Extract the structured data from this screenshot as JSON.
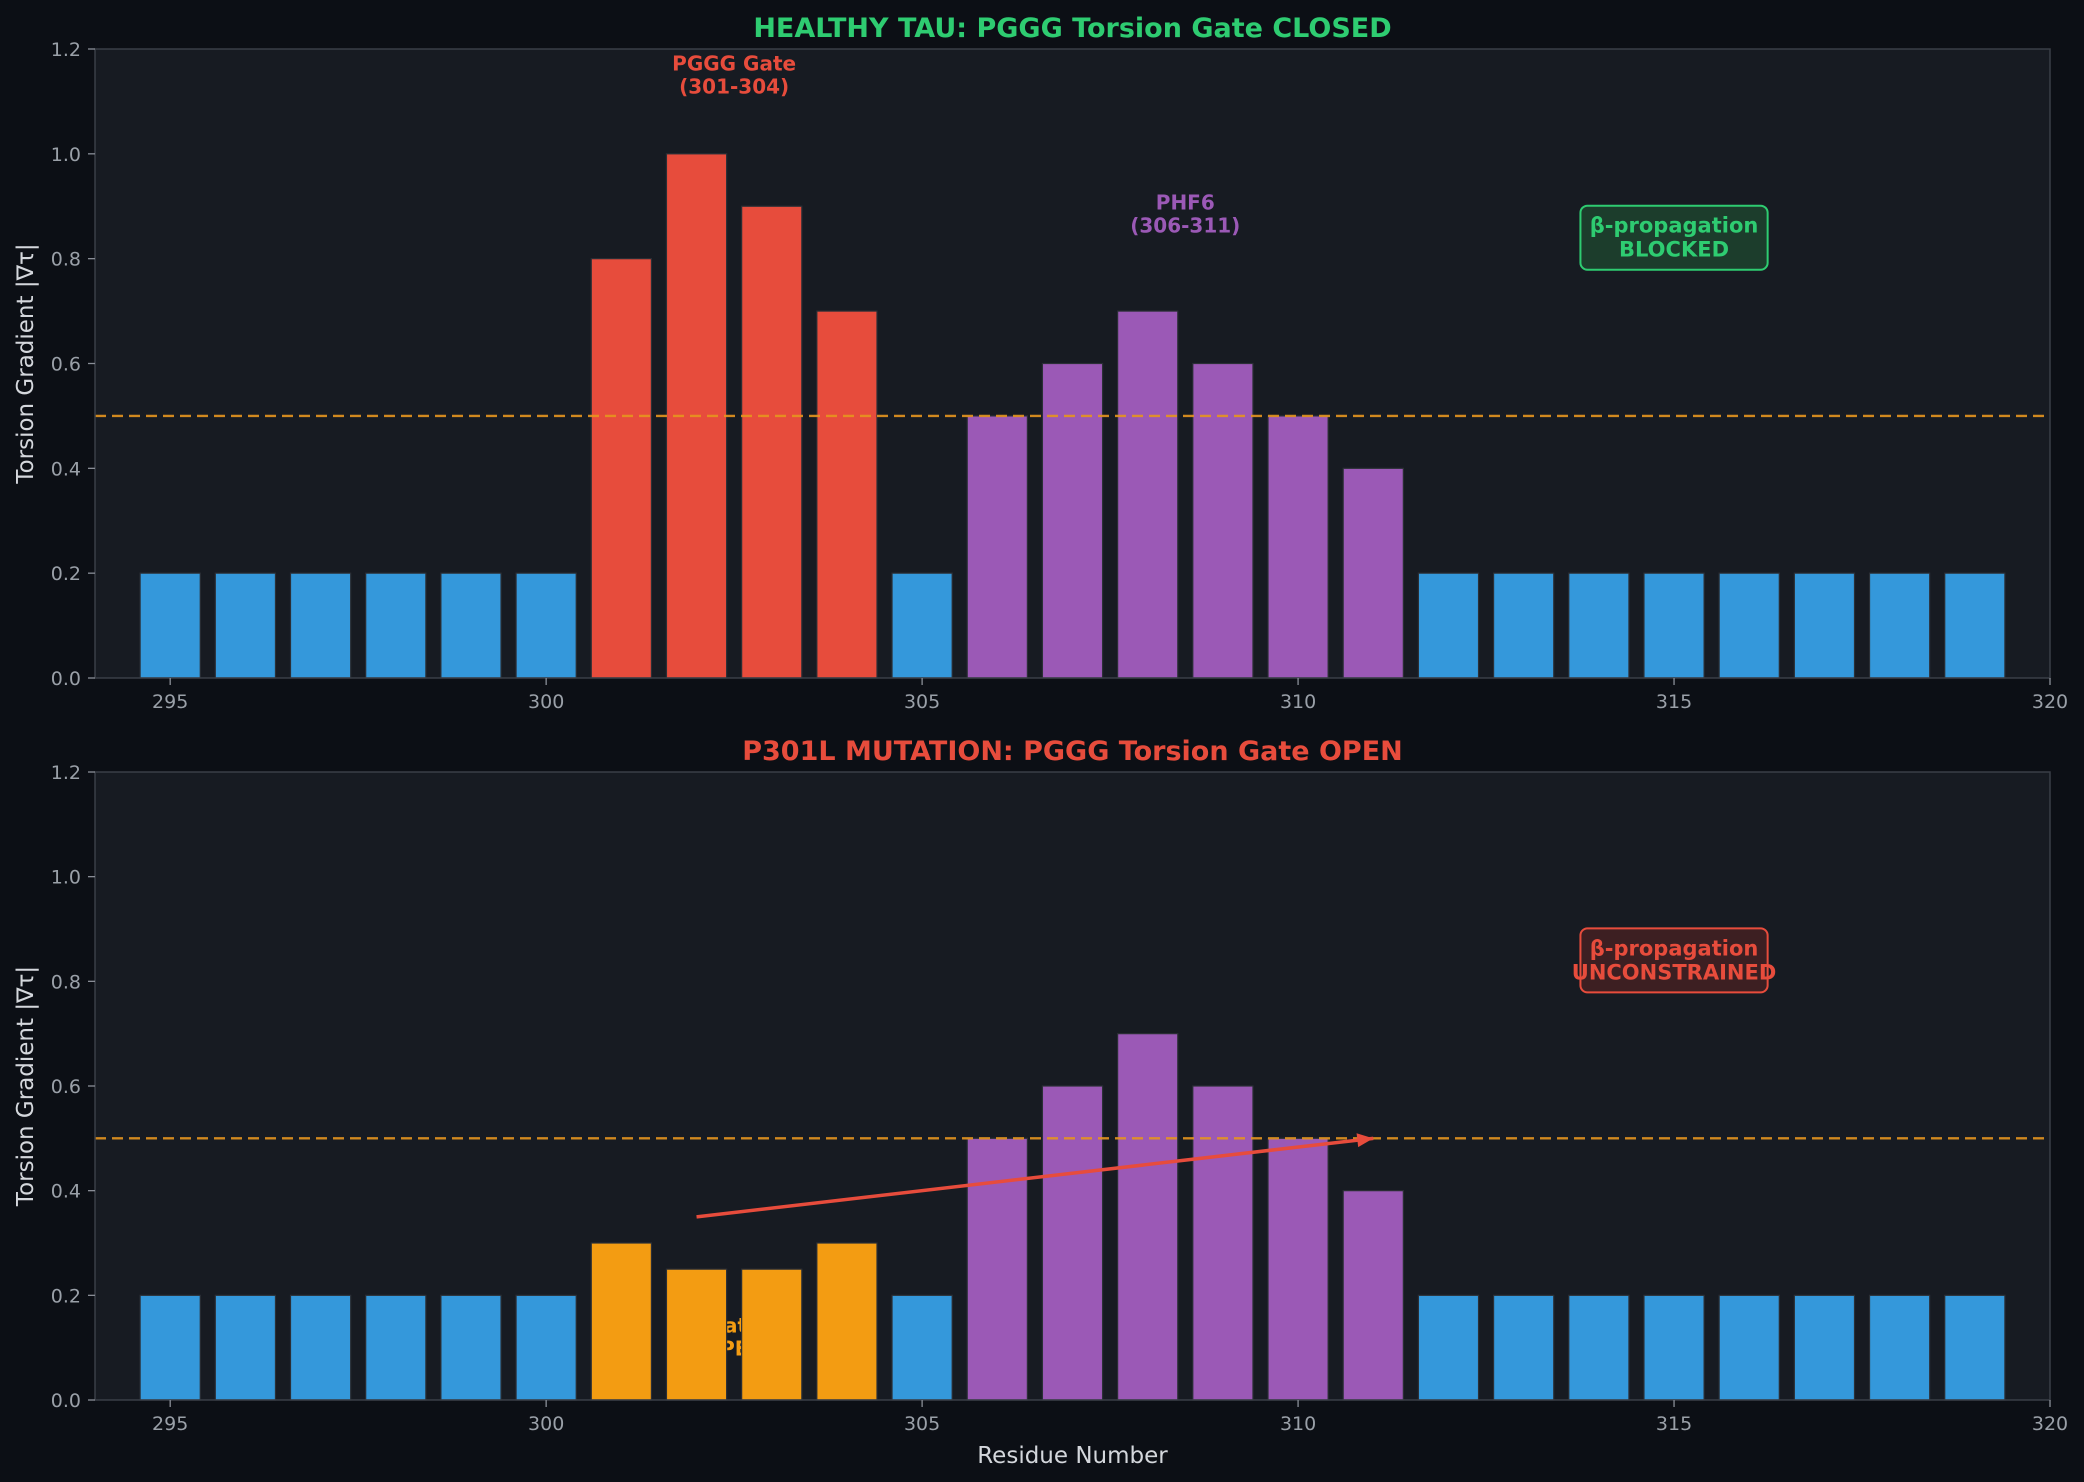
{
  "chart_data": [
    {
      "type": "bar",
      "title": "HEALTHY TAU: PGGG Torsion Gate CLOSED",
      "title_color": "#2ecc71",
      "xlabel": "",
      "ylabel": "Torsion Gradient |∇τ|",
      "xlim": [
        294,
        320
      ],
      "ylim": [
        0,
        1.2
      ],
      "xticks": [
        295,
        300,
        305,
        310,
        315,
        320
      ],
      "yticks": [
        "0.0",
        "0.2",
        "0.4",
        "0.6",
        "0.8",
        "1.0",
        "1.2"
      ],
      "threshold": 0.5,
      "threshold_color": "#e6951f",
      "x": [
        295,
        296,
        297,
        298,
        299,
        300,
        301,
        302,
        303,
        304,
        305,
        306,
        307,
        308,
        309,
        310,
        311,
        312,
        313,
        314,
        315,
        316,
        317,
        318,
        319
      ],
      "values": [
        0.2,
        0.2,
        0.2,
        0.2,
        0.2,
        0.2,
        0.8,
        1.0,
        0.9,
        0.7,
        0.2,
        0.5,
        0.6,
        0.7,
        0.6,
        0.5,
        0.4,
        0.2,
        0.2,
        0.2,
        0.2,
        0.2,
        0.2,
        0.2,
        0.2
      ],
      "colors": [
        "#3498db",
        "#3498db",
        "#3498db",
        "#3498db",
        "#3498db",
        "#3498db",
        "#e74c3c",
        "#e74c3c",
        "#e74c3c",
        "#e74c3c",
        "#3498db",
        "#9b59b6",
        "#9b59b6",
        "#9b59b6",
        "#9b59b6",
        "#9b59b6",
        "#9b59b6",
        "#3498db",
        "#3498db",
        "#3498db",
        "#3498db",
        "#3498db",
        "#3498db",
        "#3498db",
        "#3498db"
      ],
      "annotations": [
        {
          "lines": [
            "PGGG Gate",
            "(301-304)"
          ],
          "x": 302.5,
          "y": 1.15,
          "color": "#e74c3c"
        },
        {
          "lines": [
            "PHF6",
            "(306-311)"
          ],
          "x": 308.5,
          "y": 0.885,
          "color": "#9b59b6"
        }
      ],
      "status_box": {
        "lines": [
          "β-propagation",
          "BLOCKED"
        ],
        "x": 315,
        "y": 0.84,
        "color": "#2ecc71",
        "fill": "#1c3d2c"
      },
      "arrow": null
    },
    {
      "type": "bar",
      "title": "P301L MUTATION: PGGG Torsion Gate OPEN",
      "title_color": "#e74c3c",
      "xlabel": "Residue Number",
      "ylabel": "Torsion Gradient |∇τ|",
      "xlim": [
        294,
        320
      ],
      "ylim": [
        0,
        1.2
      ],
      "xticks": [
        295,
        300,
        305,
        310,
        315,
        320
      ],
      "yticks": [
        "0.0",
        "0.2",
        "0.4",
        "0.6",
        "0.8",
        "1.0",
        "1.2"
      ],
      "threshold": 0.5,
      "threshold_color": "#e6951f",
      "x": [
        295,
        296,
        297,
        298,
        299,
        300,
        301,
        302,
        303,
        304,
        305,
        306,
        307,
        308,
        309,
        310,
        311,
        312,
        313,
        314,
        315,
        316,
        317,
        318,
        319
      ],
      "values": [
        0.2,
        0.2,
        0.2,
        0.2,
        0.2,
        0.2,
        0.3,
        0.25,
        0.25,
        0.3,
        0.2,
        0.5,
        0.6,
        0.7,
        0.6,
        0.5,
        0.4,
        0.2,
        0.2,
        0.2,
        0.2,
        0.2,
        0.2,
        0.2,
        0.2
      ],
      "colors": [
        "#3498db",
        "#3498db",
        "#3498db",
        "#3498db",
        "#3498db",
        "#3498db",
        "#f39c12",
        "#f39c12",
        "#f39c12",
        "#f39c12",
        "#3498db",
        "#9b59b6",
        "#9b59b6",
        "#9b59b6",
        "#9b59b6",
        "#9b59b6",
        "#9b59b6",
        "#3498db",
        "#3498db",
        "#3498db",
        "#3498db",
        "#3498db",
        "#3498db",
        "#3498db",
        "#3498db"
      ],
      "annotations": [
        {
          "lines": [
            "Gate",
            "OPEN"
          ],
          "x": 302.5,
          "y": 0.12,
          "color": "#f39c12",
          "behind_bars": true
        }
      ],
      "status_box": {
        "lines": [
          "β-propagation",
          "UNCONSTRAINED"
        ],
        "x": 315,
        "y": 0.84,
        "color": "#e74c3c",
        "fill": "#3d1f22"
      },
      "arrow": {
        "from": [
          302,
          0.35
        ],
        "to": [
          311,
          0.5
        ],
        "color": "#e74c3c"
      }
    }
  ]
}
